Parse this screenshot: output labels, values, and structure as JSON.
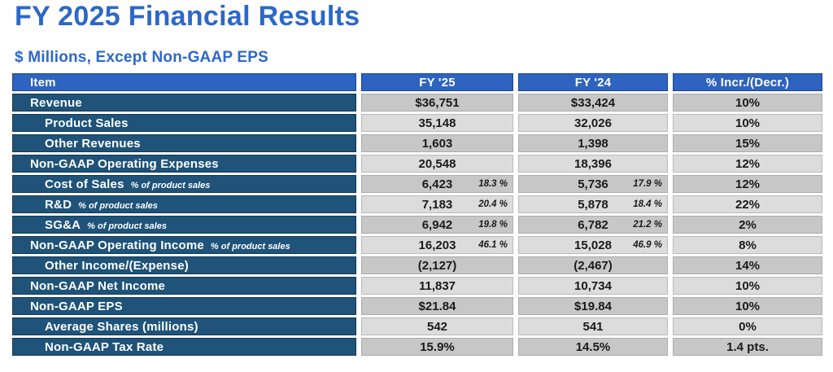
{
  "page": {
    "title": "FY 2025 Financial Results",
    "subtitle": "$ Millions, Except Non-GAAP EPS"
  },
  "colors": {
    "title_blue": "#2C68C8",
    "header_blue": "#2E63BF",
    "row_label_blue": "#1F5379",
    "cell_gray_dark": "#C7C7C7",
    "cell_gray_light": "#DCDCDC",
    "value_text": "#1A1A1A"
  },
  "table": {
    "columns": {
      "item": "Item",
      "fy25": "FY '25",
      "fy24": "FY '24",
      "change": "% Incr./(Decr.)"
    },
    "rows": [
      {
        "item": "Revenue",
        "fy25": "$36,751",
        "fy24": "$33,424",
        "change": "10%"
      },
      {
        "item": "Product Sales",
        "fy25": "35,148",
        "fy24": "32,026",
        "change": "10%"
      },
      {
        "item": "Other Revenues",
        "fy25": "1,603",
        "fy24": "1,398",
        "change": "15%"
      },
      {
        "item": "Non-GAAP Operating Expenses",
        "fy25": "20,548",
        "fy24": "18,396",
        "change": "12%"
      },
      {
        "item": "Cost of Sales",
        "suffix": "% of product sales",
        "fy25": "6,423",
        "fy25_pct": "18.3 %",
        "fy24": "5,736",
        "fy24_pct": "17.9 %",
        "change": "12%"
      },
      {
        "item": "R&D",
        "suffix": "% of product sales",
        "fy25": "7,183",
        "fy25_pct": "20.4 %",
        "fy24": "5,878",
        "fy24_pct": "18.4 %",
        "change": "22%"
      },
      {
        "item": "SG&A",
        "suffix": "% of product sales",
        "fy25": "6,942",
        "fy25_pct": "19.8 %",
        "fy24": "6,782",
        "fy24_pct": "21.2 %",
        "change": "2%"
      },
      {
        "item": "Non-GAAP Operating Income",
        "suffix": "% of product sales",
        "fy25": "16,203",
        "fy25_pct": "46.1 %",
        "fy24": "15,028",
        "fy24_pct": "46.9 %",
        "change": "8%"
      },
      {
        "item": "Other Income/(Expense)",
        "fy25": "(2,127)",
        "fy24": "(2,467)",
        "change": "14%"
      },
      {
        "item": "Non-GAAP Net Income",
        "fy25": "11,837",
        "fy24": "10,734",
        "change": "10%"
      },
      {
        "item": "Non-GAAP EPS",
        "fy25": "$21.84",
        "fy24": "$19.84",
        "change": "10%"
      },
      {
        "item": "Average Shares (millions)",
        "fy25": "542",
        "fy24": "541",
        "change": "0%"
      },
      {
        "item": "Non-GAAP Tax Rate",
        "fy25": "15.9%",
        "fy24": "14.5%",
        "change": "1.4 pts."
      }
    ]
  }
}
